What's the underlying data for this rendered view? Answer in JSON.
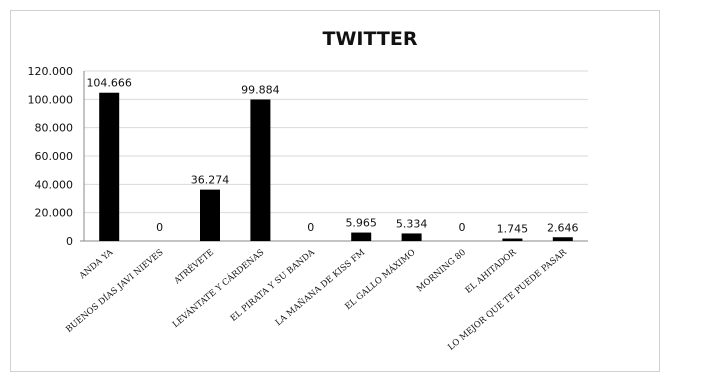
{
  "chart_data": {
    "type": "bar",
    "title": "TWITTER",
    "categories": [
      "ANDA YA",
      "BUENOS DÍAS JAVI NIEVES",
      "ATRÉVETE",
      "LEVÁNTATE Y CÁRDENAS",
      "EL PIRATA Y SU BANDA",
      "LA MAÑANA DE KISS FM",
      "EL GALLO MÁXIMO",
      "MORNING 80",
      "EL AHITADOR",
      "LO MEJOR QUE TE PUEDE PASAR"
    ],
    "values": [
      104666,
      0,
      36274,
      99884,
      0,
      5965,
      5334,
      0,
      1745,
      2646
    ],
    "value_labels": [
      "104.666",
      "0",
      "36.274",
      "99.884",
      "0",
      "5.965",
      "5.334",
      "0",
      "1.745",
      "2.646"
    ],
    "ylim": [
      0,
      120000
    ],
    "yticks": [
      0,
      20000,
      40000,
      60000,
      80000,
      100000,
      120000
    ],
    "ytick_labels": [
      "0",
      "20.000",
      "40.000",
      "60.000",
      "80.000",
      "100.000",
      "120.000"
    ],
    "xlabel": "",
    "ylabel": "",
    "grid": true,
    "bar_color": "#000000",
    "grid_color": "#d9d9d9"
  }
}
